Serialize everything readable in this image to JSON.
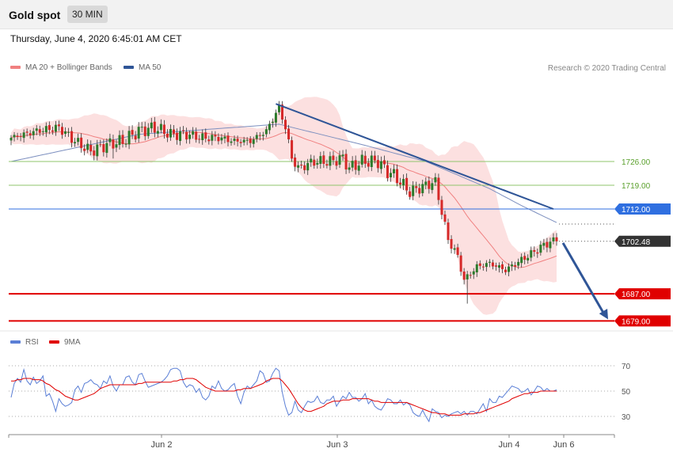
{
  "header": {
    "title": "Gold spot",
    "timeframe": "30 MIN"
  },
  "timestamp": "Thursday, June 4, 2020 6:45:01 AM CET",
  "legend": {
    "ma20": {
      "label": "MA 20 + Bollinger Bands",
      "color": "#f08080"
    },
    "ma50": {
      "label": "MA 50",
      "color": "#2f5597"
    }
  },
  "credit": "Research © 2020 Trading Central",
  "rsi_legend": {
    "rsi": {
      "label": "RSI",
      "color": "#5b7fd6"
    },
    "ma9": {
      "label": "9MA",
      "color": "#e00000"
    }
  },
  "chart_data": [
    {
      "type": "line",
      "title": "Gold spot",
      "x_ticks": [
        "Jun 2",
        "Jun 3",
        "Jun 4",
        "Jun 6"
      ],
      "ylim": [
        1675,
        1742
      ],
      "last_price": 1702.48,
      "levels": [
        {
          "value": 1726.0,
          "label": "1726.00",
          "kind": "resistance",
          "color": "#8fc56b"
        },
        {
          "value": 1719.0,
          "label": "1719.00",
          "kind": "resistance",
          "color": "#8fc56b"
        },
        {
          "value": 1712.0,
          "label": "1712.00",
          "kind": "pivot",
          "color": "#2f6fe0"
        },
        {
          "value": 1687.0,
          "label": "1687.00",
          "kind": "support",
          "color": "#e00000"
        },
        {
          "value": 1679.0,
          "label": "1679.00",
          "kind": "support",
          "color": "#e00000"
        }
      ],
      "trendline": [
        {
          "i": 83,
          "price": 1743
        },
        {
          "i": 170,
          "price": 1712
        }
      ],
      "forecast_arrow": [
        {
          "i": 172,
          "price": 1702
        },
        {
          "i": 188,
          "price": 1679
        }
      ],
      "close_anchors": [
        [
          0,
          1733
        ],
        [
          8,
          1735
        ],
        [
          15,
          1736
        ],
        [
          20,
          1732
        ],
        [
          25,
          1729
        ],
        [
          30,
          1731
        ],
        [
          35,
          1732
        ],
        [
          40,
          1735
        ],
        [
          45,
          1736
        ],
        [
          50,
          1734
        ],
        [
          55,
          1734
        ],
        [
          60,
          1733
        ],
        [
          65,
          1733
        ],
        [
          70,
          1732
        ],
        [
          75,
          1732
        ],
        [
          80,
          1735
        ],
        [
          84,
          1742
        ],
        [
          86,
          1736
        ],
        [
          88,
          1727
        ],
        [
          90,
          1724
        ],
        [
          95,
          1726
        ],
        [
          100,
          1726
        ],
        [
          104,
          1727
        ],
        [
          106,
          1724
        ],
        [
          110,
          1726
        ],
        [
          115,
          1726
        ],
        [
          118,
          1723
        ],
        [
          120,
          1722
        ],
        [
          125,
          1717
        ],
        [
          130,
          1719
        ],
        [
          133,
          1720
        ],
        [
          135,
          1711
        ],
        [
          137,
          1703
        ],
        [
          140,
          1698
        ],
        [
          142,
          1691
        ],
        [
          144,
          1693
        ],
        [
          146,
          1695
        ],
        [
          150,
          1696
        ],
        [
          155,
          1694
        ],
        [
          160,
          1697
        ],
        [
          165,
          1700
        ],
        [
          168,
          1702
        ],
        [
          171,
          1702.48
        ]
      ],
      "ma50_anchors": [
        [
          0,
          1726
        ],
        [
          40,
          1734
        ],
        [
          84,
          1737
        ],
        [
          110,
          1731
        ],
        [
          130,
          1726
        ],
        [
          150,
          1718
        ],
        [
          160,
          1713
        ],
        [
          171,
          1708
        ]
      ]
    },
    {
      "type": "line",
      "title": "RSI",
      "ylim": [
        20,
        75
      ],
      "y_ticks": [
        70,
        50,
        30
      ],
      "series": [
        {
          "name": "RSI",
          "color": "#5b7fd6",
          "values": [
            45,
            56,
            60,
            57,
            67,
            58,
            55,
            61,
            56,
            58,
            62,
            46,
            48,
            42,
            34,
            44,
            40,
            38,
            39,
            41,
            51,
            54,
            49,
            56,
            57,
            59,
            56,
            55,
            52,
            58,
            56,
            62,
            54,
            50,
            55,
            55,
            61,
            62,
            57,
            55,
            63,
            64,
            58,
            53,
            54,
            55,
            56,
            57,
            59,
            62,
            67,
            68,
            68,
            66,
            57,
            53,
            55,
            54,
            49,
            52,
            45,
            43,
            46,
            54,
            52,
            58,
            52,
            50,
            51,
            54,
            56,
            46,
            40,
            49,
            54,
            52,
            55,
            58,
            66,
            64,
            57,
            58,
            64,
            68,
            66,
            49,
            38,
            31,
            33,
            42,
            35,
            33,
            38,
            42,
            41,
            42,
            46,
            41,
            40,
            43,
            43,
            46,
            38,
            42,
            46,
            44,
            49,
            45,
            45,
            42,
            44,
            48,
            40,
            43,
            38,
            36,
            35,
            39,
            44,
            43,
            40,
            40,
            43,
            39,
            41,
            39,
            33,
            31,
            30,
            35,
            30,
            26,
            36,
            34,
            33,
            29,
            31,
            30,
            32,
            33,
            34,
            32,
            34,
            31,
            34,
            34,
            32,
            36,
            40,
            34,
            44,
            41,
            41,
            46,
            45,
            48,
            51,
            54,
            53,
            52,
            49,
            50,
            52,
            47,
            50,
            54,
            53,
            50,
            52,
            50,
            50,
            51
          ]
        },
        {
          "name": "9MA",
          "color": "#e00000",
          "values": [
            58,
            58,
            59,
            59,
            60,
            60,
            60,
            59,
            59,
            59,
            58,
            56,
            55,
            53,
            51,
            50,
            48,
            46,
            45,
            44,
            43,
            43,
            44,
            45,
            46,
            47,
            48,
            50,
            52,
            53,
            54,
            55,
            55,
            55,
            55,
            55,
            55,
            55,
            55,
            55,
            56,
            56,
            57,
            57,
            57,
            57,
            57,
            57,
            57,
            57,
            57,
            58,
            58,
            59,
            59,
            60,
            60,
            60,
            59,
            57,
            55,
            53,
            52,
            51,
            50,
            50,
            50,
            50,
            50,
            50,
            50,
            51,
            51,
            52,
            52,
            52,
            53,
            54,
            55,
            56,
            58,
            59,
            60,
            60,
            60,
            58,
            55,
            52,
            48,
            44,
            40,
            37,
            35,
            34,
            34,
            35,
            36,
            37,
            38,
            40,
            41,
            42,
            42,
            42,
            43,
            43,
            43,
            44,
            44,
            44,
            44,
            44,
            44,
            43,
            42,
            42,
            41,
            41,
            41,
            41,
            41,
            41,
            41,
            41,
            41,
            40,
            39,
            38,
            37,
            36,
            35,
            34,
            33,
            33,
            32,
            32,
            32,
            31,
            31,
            31,
            31,
            31,
            32,
            32,
            32,
            32,
            33,
            33,
            34,
            35,
            36,
            37,
            38,
            39,
            40,
            41,
            42,
            44,
            45,
            46,
            47,
            48,
            48,
            49,
            49,
            49,
            50,
            50,
            50,
            50,
            50,
            50
          ]
        }
      ]
    }
  ]
}
